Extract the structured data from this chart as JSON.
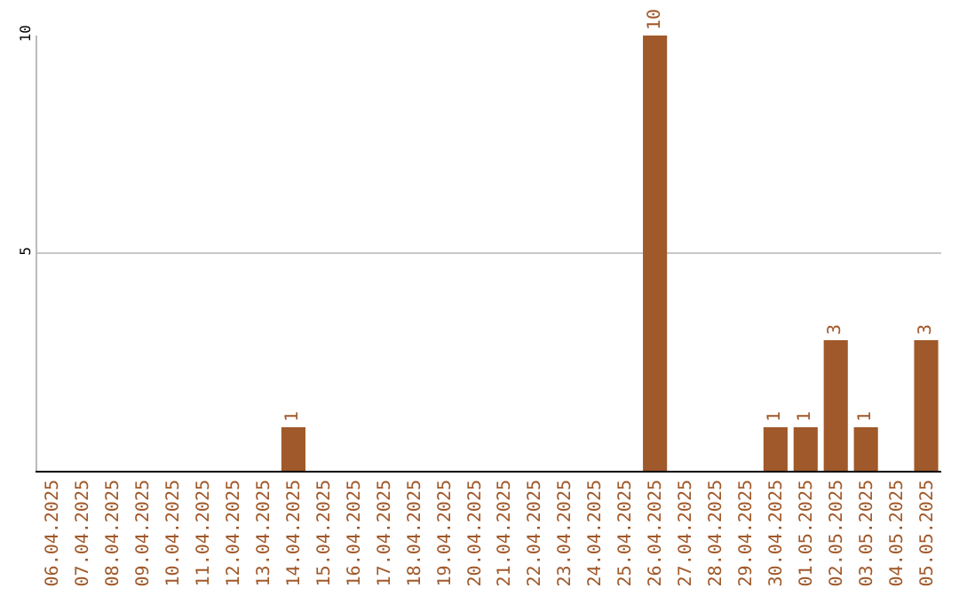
{
  "chart_data": {
    "type": "bar",
    "categories": [
      "06.04.2025",
      "07.04.2025",
      "08.04.2025",
      "09.04.2025",
      "10.04.2025",
      "11.04.2025",
      "12.04.2025",
      "13.04.2025",
      "14.04.2025",
      "15.04.2025",
      "16.04.2025",
      "17.04.2025",
      "18.04.2025",
      "19.04.2025",
      "20.04.2025",
      "21.04.2025",
      "22.04.2025",
      "23.04.2025",
      "24.04.2025",
      "25.04.2025",
      "26.04.2025",
      "27.04.2025",
      "28.04.2025",
      "29.04.2025",
      "30.04.2025",
      "01.05.2025",
      "02.05.2025",
      "03.05.2025",
      "04.05.2025",
      "05.05.2025"
    ],
    "values": [
      0,
      0,
      0,
      0,
      0,
      0,
      0,
      0,
      1,
      0,
      0,
      0,
      0,
      0,
      0,
      0,
      0,
      0,
      0,
      0,
      10,
      0,
      0,
      0,
      1,
      1,
      3,
      1,
      0,
      3
    ],
    "value_labels": [
      null,
      null,
      null,
      null,
      null,
      null,
      null,
      null,
      "1",
      null,
      null,
      null,
      null,
      null,
      null,
      null,
      null,
      null,
      null,
      null,
      "10",
      null,
      null,
      null,
      "1",
      "1",
      "3",
      "1",
      null,
      "3"
    ],
    "color": "#a0592a",
    "ylim": [
      0,
      10
    ],
    "yticks": [
      5,
      10
    ],
    "grid": "y"
  }
}
